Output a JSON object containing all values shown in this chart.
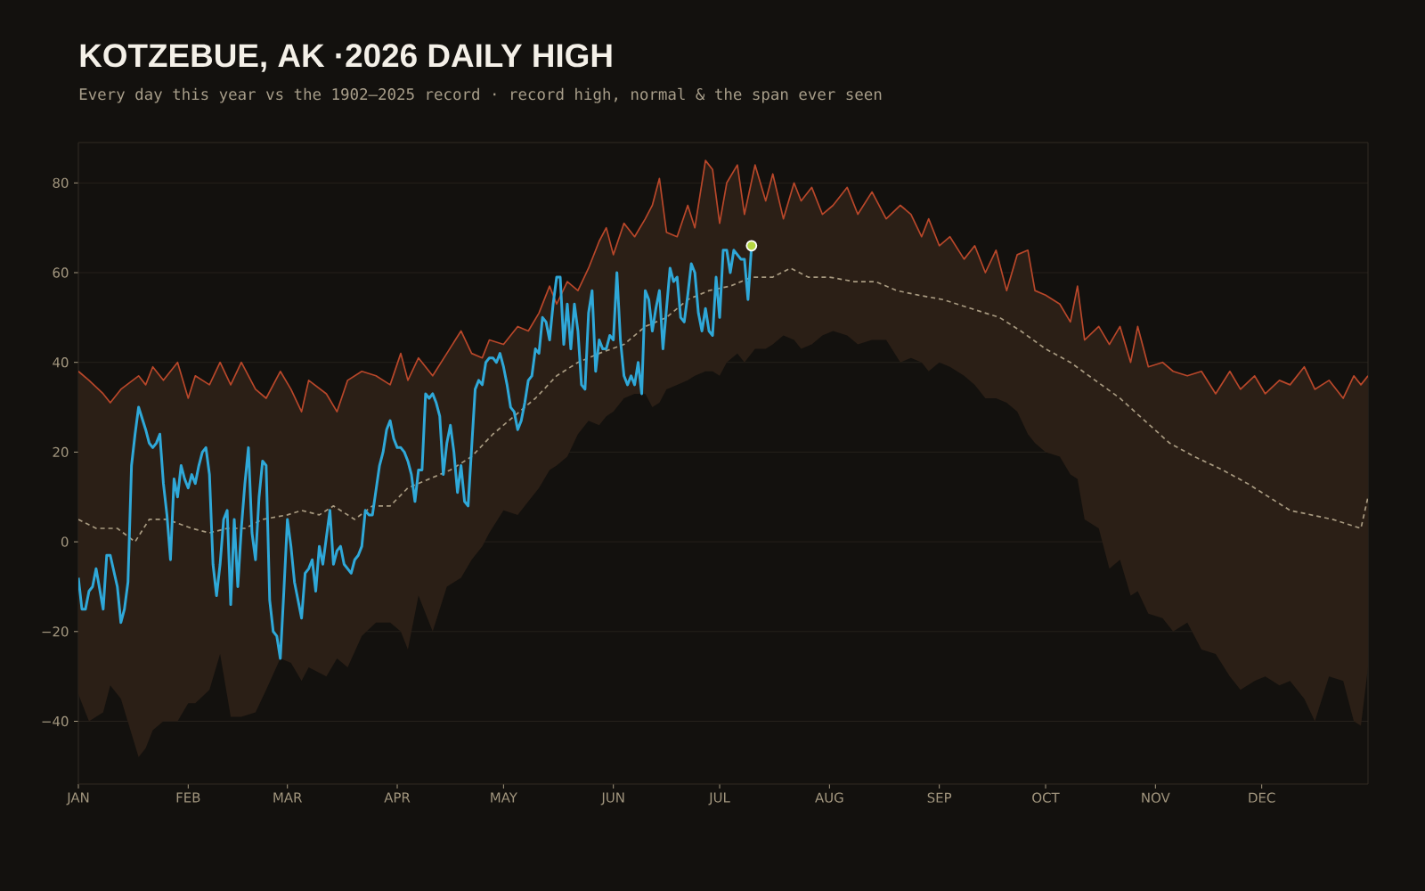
{
  "chart_data": {
    "type": "line",
    "title": "KOTZEBUE, AK ·2026 DAILY HIGH",
    "subtitle": "Every day this year vs the 1902–2025 record · record high, normal & the span ever seen",
    "xlim": [
      "2026-01-01",
      "2026-12-31"
    ],
    "xticks": [
      {
        "value": "2026-01-01",
        "label": "JAN"
      },
      {
        "value": "2026-02-01",
        "label": "FEB"
      },
      {
        "value": "2026-03-01",
        "label": "MAR"
      },
      {
        "value": "2026-04-01",
        "label": "APR"
      },
      {
        "value": "2026-05-01",
        "label": "MAY"
      },
      {
        "value": "2026-06-01",
        "label": "JUN"
      },
      {
        "value": "2026-07-01",
        "label": "JUL"
      },
      {
        "value": "2026-08-01",
        "label": "AUG"
      },
      {
        "value": "2026-09-01",
        "label": "SEP"
      },
      {
        "value": "2026-10-01",
        "label": "OCT"
      },
      {
        "value": "2026-11-01",
        "label": "NOV"
      },
      {
        "value": "2026-12-01",
        "label": "DEC"
      }
    ],
    "ylim": [
      -54,
      89
    ],
    "yticks": [
      {
        "value": -40,
        "label": "−40"
      },
      {
        "value": -20,
        "label": "−20"
      },
      0,
      20,
      40,
      60,
      80
    ],
    "grid": "y",
    "series": [
      {
        "color": "#b8472a",
        "x": [
          "2026-01-01",
          "2026-01-04",
          "2026-01-08",
          "2026-01-10",
          "2026-01-13",
          "2026-01-18",
          "2026-01-20",
          "2026-01-22",
          "2026-01-25",
          "2026-01-29",
          "2026-02-01",
          "2026-02-03",
          "2026-02-07",
          "2026-02-10",
          "2026-02-13",
          "2026-02-16",
          "2026-02-20",
          "2026-02-23",
          "2026-02-27",
          "2026-03-02",
          "2026-03-05",
          "2026-03-07",
          "2026-03-12",
          "2026-03-15",
          "2026-03-18",
          "2026-03-22",
          "2026-03-26",
          "2026-03-30",
          "2026-04-02",
          "2026-04-04",
          "2026-04-07",
          "2026-04-11",
          "2026-04-15",
          "2026-04-19",
          "2026-04-22",
          "2026-04-25",
          "2026-04-27",
          "2026-05-01",
          "2026-05-05",
          "2026-05-08",
          "2026-05-11",
          "2026-05-14",
          "2026-05-16",
          "2026-05-19",
          "2026-05-22",
          "2026-05-25",
          "2026-05-28",
          "2026-05-30",
          "2026-06-01",
          "2026-06-04",
          "2026-06-07",
          "2026-06-10",
          "2026-06-12",
          "2026-06-14",
          "2026-06-16",
          "2026-06-19",
          "2026-06-22",
          "2026-06-24",
          "2026-06-27",
          "2026-06-29",
          "2026-07-01",
          "2026-07-03",
          "2026-07-06",
          "2026-07-08",
          "2026-07-11",
          "2026-07-14",
          "2026-07-16",
          "2026-07-19",
          "2026-07-22",
          "2026-07-24",
          "2026-07-27",
          "2026-07-30",
          "2026-08-02",
          "2026-08-06",
          "2026-08-09",
          "2026-08-13",
          "2026-08-17",
          "2026-08-21",
          "2026-08-24",
          "2026-08-27",
          "2026-08-29",
          "2026-09-01",
          "2026-09-04",
          "2026-09-08",
          "2026-09-11",
          "2026-09-14",
          "2026-09-17",
          "2026-09-20",
          "2026-09-23",
          "2026-09-26",
          "2026-09-28",
          "2026-10-01",
          "2026-10-05",
          "2026-10-08",
          "2026-10-10",
          "2026-10-12",
          "2026-10-16",
          "2026-10-19",
          "2026-10-22",
          "2026-10-25",
          "2026-10-27",
          "2026-10-30",
          "2026-11-03",
          "2026-11-06",
          "2026-11-10",
          "2026-11-14",
          "2026-11-18",
          "2026-11-22",
          "2026-11-25",
          "2026-11-29",
          "2026-12-02",
          "2026-12-06",
          "2026-12-09",
          "2026-12-13",
          "2026-12-16",
          "2026-12-20",
          "2026-12-24",
          "2026-12-27",
          "2026-12-29",
          "2026-12-31"
        ],
        "values": [
          38,
          36,
          33,
          31,
          34,
          37,
          35,
          39,
          36,
          40,
          32,
          37,
          35,
          40,
          35,
          40,
          34,
          32,
          38,
          34,
          29,
          36,
          33,
          29,
          36,
          38,
          37,
          35,
          42,
          36,
          41,
          37,
          42,
          47,
          42,
          41,
          45,
          44,
          48,
          47,
          51,
          57,
          53,
          58,
          56,
          61,
          67,
          70,
          64,
          71,
          68,
          72,
          75,
          81,
          69,
          68,
          75,
          70,
          85,
          83,
          71,
          80,
          84,
          73,
          84,
          76,
          82,
          72,
          80,
          76,
          79,
          73,
          75,
          79,
          73,
          78,
          72,
          75,
          73,
          68,
          72,
          66,
          68,
          63,
          66,
          60,
          65,
          56,
          64,
          65,
          56,
          55,
          53,
          49,
          57,
          45,
          48,
          44,
          48,
          40,
          48,
          39,
          40,
          38,
          37,
          38,
          33,
          38,
          34,
          37,
          33,
          36,
          35,
          39,
          34,
          36,
          32,
          37,
          35,
          37
        ],
        "upper": [
          38,
          36,
          33,
          31,
          34,
          37,
          35,
          39,
          36,
          40,
          32,
          37,
          35,
          40,
          35,
          40,
          34,
          32,
          38,
          34,
          29,
          36,
          33,
          29,
          36,
          38,
          37,
          35,
          42,
          36,
          41,
          37,
          42,
          47,
          42,
          41,
          45,
          44,
          48,
          47,
          51,
          57,
          53,
          58,
          56,
          61,
          67,
          70,
          64,
          71,
          68,
          72,
          75,
          81,
          69,
          68,
          75,
          70,
          85,
          83,
          71,
          80,
          84,
          73,
          84,
          76,
          82,
          72,
          80,
          76,
          79,
          73,
          75,
          79,
          73,
          78,
          72,
          75,
          73,
          68,
          72,
          66,
          68,
          63,
          66,
          60,
          65,
          56,
          64,
          65,
          56,
          55,
          53,
          49,
          57,
          45,
          48,
          44,
          48,
          40,
          48,
          39,
          40,
          38,
          37,
          38,
          33,
          38,
          34,
          37,
          33,
          36,
          35,
          39,
          34,
          36,
          32,
          37,
          35,
          37
        ],
        "lower": [
          -34,
          -40,
          -38,
          -32,
          -35,
          -48,
          -46,
          -42,
          -40,
          -40,
          -36,
          -36,
          -33,
          -25,
          -39,
          -39,
          -38,
          -33,
          -26,
          -27,
          -31,
          -28,
          -30,
          -26,
          -28,
          -21,
          -18,
          -18,
          -20,
          -24,
          -12,
          -20,
          -10,
          -8,
          -4,
          -1,
          2,
          7,
          6,
          9,
          12,
          16,
          17,
          19,
          24,
          27,
          26,
          28,
          29,
          32,
          33,
          33,
          30,
          31,
          34,
          35,
          36,
          37,
          38,
          38,
          37,
          40,
          42,
          40,
          43,
          43,
          44,
          46,
          45,
          43,
          44,
          46,
          47,
          46,
          44,
          45,
          45,
          40,
          41,
          40,
          38,
          40,
          39,
          37,
          35,
          32,
          32,
          31,
          29,
          24,
          22,
          20,
          19,
          15,
          14,
          5,
          3,
          -6,
          -4,
          -12,
          -11,
          -16,
          -17,
          -20,
          -18,
          -24,
          -25,
          -30,
          -33,
          -31,
          -30,
          -32,
          -31,
          -35,
          -40,
          -30,
          -31,
          -40,
          -41,
          -28
        ]
      },
      {
        "color": "#a89a80",
        "line_style": "dashed",
        "x": [
          "2026-01-01",
          "2026-01-06",
          "2026-01-12",
          "2026-01-17",
          "2026-01-21",
          "2026-01-26",
          "2026-02-02",
          "2026-02-07",
          "2026-02-12",
          "2026-02-17",
          "2026-02-22",
          "2026-03-01",
          "2026-03-05",
          "2026-03-10",
          "2026-03-14",
          "2026-03-20",
          "2026-03-25",
          "2026-03-30",
          "2026-04-04",
          "2026-04-10",
          "2026-04-16",
          "2026-04-22",
          "2026-04-28",
          "2026-05-04",
          "2026-05-10",
          "2026-05-16",
          "2026-05-22",
          "2026-05-28",
          "2026-06-04",
          "2026-06-10",
          "2026-06-16",
          "2026-06-22",
          "2026-06-28",
          "2026-07-04",
          "2026-07-10",
          "2026-07-16",
          "2026-07-21",
          "2026-07-26",
          "2026-08-01",
          "2026-08-08",
          "2026-08-14",
          "2026-08-20",
          "2026-08-26",
          "2026-09-02",
          "2026-09-10",
          "2026-09-18",
          "2026-09-24",
          "2026-10-01",
          "2026-10-08",
          "2026-10-15",
          "2026-10-22",
          "2026-10-29",
          "2026-11-05",
          "2026-11-12",
          "2026-11-20",
          "2026-11-27",
          "2026-12-03",
          "2026-12-09",
          "2026-12-15",
          "2026-12-21",
          "2026-12-25",
          "2026-12-29",
          "2026-12-31"
        ],
        "values": [
          5,
          3,
          3,
          0,
          5,
          5,
          3,
          2,
          3,
          3,
          5,
          6,
          7,
          6,
          8,
          5,
          8,
          8,
          12,
          14,
          16,
          19,
          24,
          28,
          32,
          37,
          40,
          42,
          44,
          48,
          50,
          54,
          56,
          57,
          59,
          59,
          61,
          59,
          59,
          58,
          58,
          56,
          55,
          54,
          52,
          50,
          47,
          43,
          40,
          36,
          32,
          27,
          22,
          19,
          16,
          13,
          10,
          7,
          6,
          5,
          4,
          3,
          10
        ]
      },
      {
        "color": "#2fa8d8",
        "x": [
          "2026-01-01",
          "2026-01-02",
          "2026-01-03",
          "2026-01-04",
          "2026-01-05",
          "2026-01-06",
          "2026-01-08",
          "2026-01-09",
          "2026-01-10",
          "2026-01-12",
          "2026-01-13",
          "2026-01-14",
          "2026-01-15",
          "2026-01-16",
          "2026-01-17",
          "2026-01-18",
          "2026-01-20",
          "2026-01-21",
          "2026-01-22",
          "2026-01-23",
          "2026-01-24",
          "2026-01-25",
          "2026-01-26",
          "2026-01-27",
          "2026-01-28",
          "2026-01-29",
          "2026-01-30",
          "2026-01-31",
          "2026-02-01",
          "2026-02-02",
          "2026-02-03",
          "2026-02-04",
          "2026-02-05",
          "2026-02-06",
          "2026-02-07",
          "2026-02-08",
          "2026-02-09",
          "2026-02-10",
          "2026-02-11",
          "2026-02-12",
          "2026-02-13",
          "2026-02-14",
          "2026-02-15",
          "2026-02-16",
          "2026-02-17",
          "2026-02-18",
          "2026-02-19",
          "2026-02-20",
          "2026-02-21",
          "2026-02-22",
          "2026-02-23",
          "2026-02-24",
          "2026-02-25",
          "2026-02-26",
          "2026-02-27",
          "2026-02-28",
          "2026-03-01",
          "2026-03-02",
          "2026-03-03",
          "2026-03-05",
          "2026-03-06",
          "2026-03-07",
          "2026-03-08",
          "2026-03-09",
          "2026-03-10",
          "2026-03-11",
          "2026-03-12",
          "2026-03-13",
          "2026-03-14",
          "2026-03-15",
          "2026-03-16",
          "2026-03-17",
          "2026-03-19",
          "2026-03-20",
          "2026-03-21",
          "2026-03-22",
          "2026-03-23",
          "2026-03-24",
          "2026-03-25",
          "2026-03-27",
          "2026-03-28",
          "2026-03-29",
          "2026-03-30",
          "2026-03-31",
          "2026-04-01",
          "2026-04-02",
          "2026-04-03",
          "2026-04-04",
          "2026-04-05",
          "2026-04-06",
          "2026-04-07",
          "2026-04-08",
          "2026-04-09",
          "2026-04-10",
          "2026-04-11",
          "2026-04-12",
          "2026-04-13",
          "2026-04-14",
          "2026-04-15",
          "2026-04-16",
          "2026-04-17",
          "2026-04-18",
          "2026-04-19",
          "2026-04-20",
          "2026-04-21",
          "2026-04-22",
          "2026-04-23",
          "2026-04-24",
          "2026-04-25",
          "2026-04-26",
          "2026-04-27",
          "2026-04-28",
          "2026-04-29",
          "2026-04-30",
          "2026-05-01",
          "2026-05-02",
          "2026-05-03",
          "2026-05-04",
          "2026-05-05",
          "2026-05-06",
          "2026-05-07",
          "2026-05-08",
          "2026-05-09",
          "2026-05-10",
          "2026-05-11",
          "2026-05-12",
          "2026-05-13",
          "2026-05-14",
          "2026-05-15",
          "2026-05-16",
          "2026-05-17",
          "2026-05-18",
          "2026-05-19",
          "2026-05-20",
          "2026-05-21",
          "2026-05-22",
          "2026-05-23",
          "2026-05-24",
          "2026-05-25",
          "2026-05-26",
          "2026-05-27",
          "2026-05-28",
          "2026-05-29",
          "2026-05-30",
          "2026-05-31",
          "2026-06-01",
          "2026-06-02",
          "2026-06-03",
          "2026-06-04",
          "2026-06-05",
          "2026-06-06",
          "2026-06-07",
          "2026-06-08",
          "2026-06-09",
          "2026-06-10",
          "2026-06-11",
          "2026-06-12",
          "2026-06-13",
          "2026-06-14",
          "2026-06-15",
          "2026-06-16",
          "2026-06-17",
          "2026-06-18",
          "2026-06-19",
          "2026-06-20",
          "2026-06-21",
          "2026-06-22",
          "2026-06-23",
          "2026-06-24",
          "2026-06-25",
          "2026-06-26",
          "2026-06-27",
          "2026-06-28",
          "2026-06-29",
          "2026-06-30",
          "2026-07-01",
          "2026-07-02",
          "2026-07-03",
          "2026-07-04",
          "2026-07-05",
          "2026-07-06",
          "2026-07-07",
          "2026-07-08",
          "2026-07-09",
          "2026-07-10"
        ],
        "values": [
          -8,
          -15,
          -15,
          -11,
          -10,
          -6,
          -15,
          -3,
          -3,
          -10,
          -18,
          -15,
          -9,
          17,
          24,
          30,
          25,
          22,
          21,
          22,
          24,
          13,
          6,
          -4,
          14,
          10,
          17,
          14,
          12,
          15,
          13,
          17,
          20,
          21,
          15,
          -5,
          -12,
          -5,
          5,
          7,
          -14,
          5,
          -10,
          3,
          13,
          21,
          2,
          -4,
          10,
          18,
          17,
          -13,
          -20,
          -21,
          -26,
          -11,
          5,
          -1,
          -9,
          -17,
          -7,
          -6,
          -4,
          -11,
          -1,
          -5,
          1,
          7,
          -5,
          -2,
          -1,
          -5,
          -7,
          -4,
          -3,
          -1,
          7,
          6,
          6,
          17,
          20,
          25,
          27,
          23,
          21,
          21,
          20,
          18,
          15,
          9,
          16,
          16,
          33,
          32,
          33,
          31,
          28,
          15,
          22,
          26,
          20,
          11,
          17,
          9,
          8,
          21,
          34,
          36,
          35,
          40,
          41,
          41,
          40,
          42,
          39,
          35,
          30,
          29,
          25,
          27,
          31,
          36,
          37,
          43,
          42,
          50,
          49,
          45,
          53,
          59,
          59,
          44,
          53,
          43,
          53,
          47,
          35,
          34,
          51,
          56,
          38,
          45,
          43,
          43,
          46,
          45,
          60,
          45,
          37,
          35,
          37,
          35,
          40,
          33,
          56,
          54,
          47,
          52,
          56,
          43,
          52,
          61,
          58,
          59,
          50,
          49,
          55,
          62,
          60,
          51,
          47,
          52,
          47,
          46,
          59,
          50,
          65,
          65,
          60,
          65,
          64,
          63,
          63,
          54,
          66
        ]
      },
      {
        "type": "scatter",
        "color": "#b5d643",
        "marker": "circle",
        "x": [
          "2026-07-10"
        ],
        "values": [
          66
        ]
      }
    ]
  }
}
